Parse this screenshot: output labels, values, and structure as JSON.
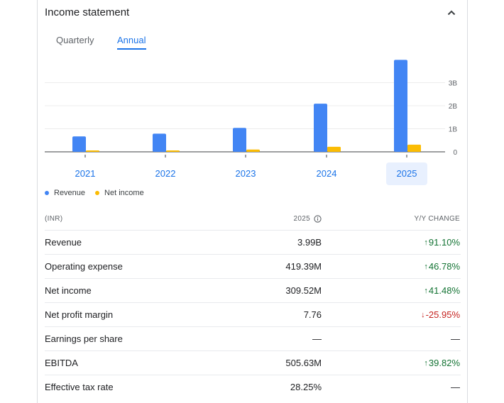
{
  "header": {
    "title": "Income statement",
    "collapse_icon": "chevron-up-icon"
  },
  "tabs": [
    {
      "label": "Quarterly",
      "selected": false
    },
    {
      "label": "Annual",
      "selected": true
    }
  ],
  "chart_data": {
    "type": "bar",
    "categories": [
      "2021",
      "2022",
      "2023",
      "2024",
      "2025"
    ],
    "selected_category": "2025",
    "series": [
      {
        "name": "Revenue",
        "color": "#4285f4",
        "values": [
          0.67,
          0.79,
          1.04,
          2.09,
          3.99
        ]
      },
      {
        "name": "Net income",
        "color": "#fbbc04",
        "values": [
          0.05,
          0.06,
          0.1,
          0.22,
          0.31
        ]
      }
    ],
    "y_unit": "B",
    "y_ticks": [
      {
        "value": 0,
        "label": "0"
      },
      {
        "value": 1,
        "label": "1B"
      },
      {
        "value": 2,
        "label": "2B"
      },
      {
        "value": 3,
        "label": "3B"
      }
    ],
    "ylim": [
      0,
      4.1
    ],
    "grid": true,
    "legend_position": "bottom-left"
  },
  "table": {
    "headers": {
      "label": "(INR)",
      "value": "2025",
      "change": "Y/Y CHANGE"
    },
    "rows": [
      {
        "label": "Revenue",
        "value": "3.99B",
        "change": "91.10%",
        "direction": "up"
      },
      {
        "label": "Operating expense",
        "value": "419.39M",
        "change": "46.78%",
        "direction": "up"
      },
      {
        "label": "Net income",
        "value": "309.52M",
        "change": "41.48%",
        "direction": "up"
      },
      {
        "label": "Net profit margin",
        "value": "7.76",
        "change": "-25.95%",
        "direction": "down"
      },
      {
        "label": "Earnings per share",
        "value": "—",
        "change": "—",
        "direction": "none"
      },
      {
        "label": "EBITDA",
        "value": "505.63M",
        "change": "39.82%",
        "direction": "up"
      },
      {
        "label": "Effective tax rate",
        "value": "28.25%",
        "change": "—",
        "direction": "none"
      }
    ]
  }
}
